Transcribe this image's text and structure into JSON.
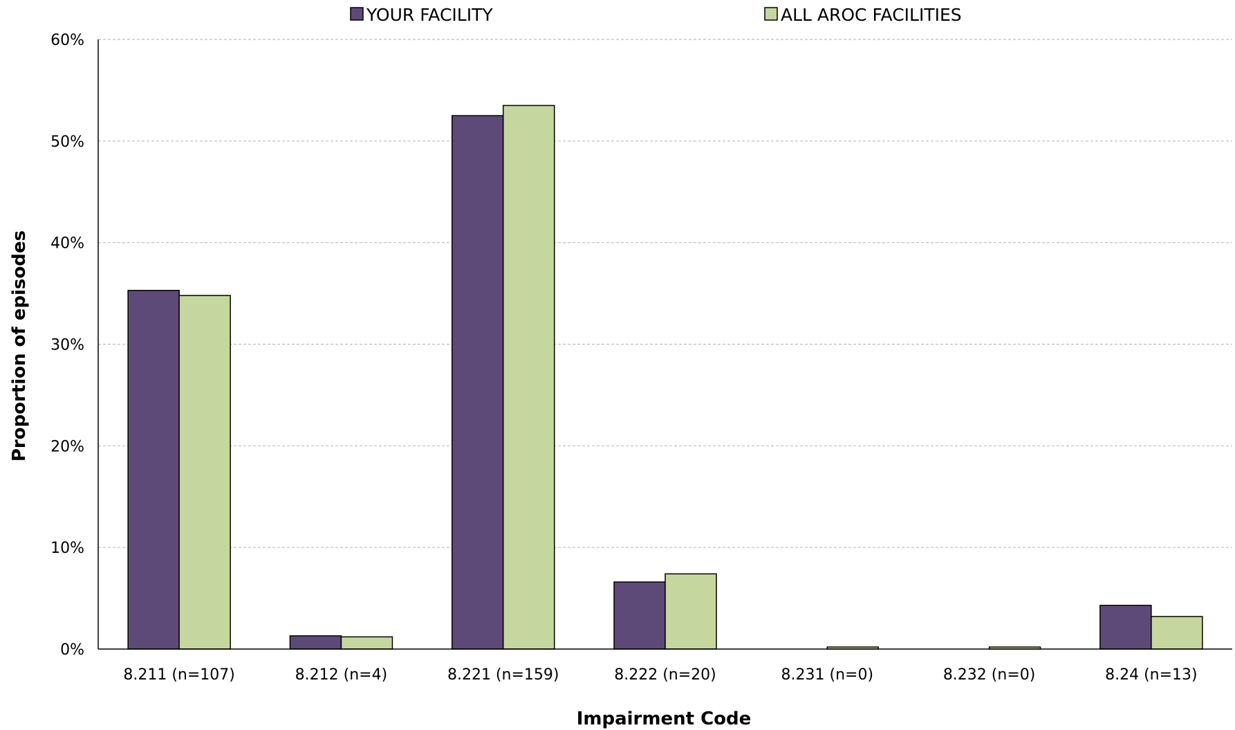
{
  "chart_data": {
    "type": "bar",
    "title": "",
    "xlabel": "Impairment Code",
    "ylabel": "Proportion of episodes",
    "ylim": [
      0,
      60
    ],
    "y_ticks": [
      "0%",
      "10%",
      "20%",
      "30%",
      "40%",
      "50%",
      "60%"
    ],
    "categories": [
      "8.211 (n=107)",
      "8.212 (n=4)",
      "8.221 (n=159)",
      "8.222 (n=20)",
      "8.231 (n=0)",
      "8.232 (n=0)",
      "8.24 (n=13)"
    ],
    "series": [
      {
        "name": "YOUR FACILITY",
        "color": "#5e4a78",
        "values": [
          35.3,
          1.3,
          52.5,
          6.6,
          0,
          0,
          4.3
        ]
      },
      {
        "name": "ALL AROC FACILITIES",
        "color": "#c5d79e",
        "values": [
          34.8,
          1.2,
          53.5,
          7.4,
          0.2,
          0.2,
          3.2
        ]
      }
    ],
    "grid": true,
    "legend_position": "top"
  }
}
